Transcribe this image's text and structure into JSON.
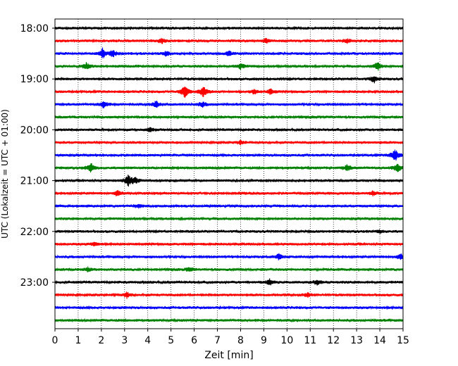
{
  "chart_data": {
    "type": "line",
    "title": "",
    "xlabel": "Zeit  [min]",
    "ylabel": "UTC (Lokalzeit = UTC + 01:00)",
    "xlim": [
      0,
      15
    ],
    "x_ticks": [
      "0",
      "1",
      "2",
      "3",
      "4",
      "5",
      "6",
      "7",
      "8",
      "9",
      "10",
      "11",
      "12",
      "13",
      "14",
      "15"
    ],
    "y_ticks": [
      "18:00",
      "19:00",
      "20:00",
      "21:00",
      "22:00",
      "23:00"
    ],
    "grid": "vertical-dotted",
    "trace_interval_minutes": 15,
    "start_time": "18:00",
    "end_time": "23:45",
    "color_cycle": [
      "#000000",
      "#ff0000",
      "#0000ff",
      "#008000"
    ],
    "traces": [
      {
        "time": "18:00",
        "events": []
      },
      {
        "time": "18:15",
        "events": [
          {
            "t": 4.6,
            "amp": 0.35
          },
          {
            "t": 9.1,
            "amp": 0.3
          },
          {
            "t": 12.6,
            "amp": 0.3
          }
        ]
      },
      {
        "time": "18:30",
        "events": [
          {
            "t": 2.05,
            "amp": 0.8
          },
          {
            "t": 2.5,
            "amp": 0.55
          },
          {
            "t": 4.8,
            "amp": 0.35
          },
          {
            "t": 7.5,
            "amp": 0.35
          }
        ]
      },
      {
        "time": "18:45",
        "events": [
          {
            "t": 1.35,
            "amp": 0.55
          },
          {
            "t": 8.0,
            "amp": 0.4
          },
          {
            "t": 13.9,
            "amp": 0.65
          }
        ]
      },
      {
        "time": "19:00",
        "events": [
          {
            "t": 13.75,
            "amp": 0.55
          }
        ]
      },
      {
        "time": "19:15",
        "events": [
          {
            "t": 5.6,
            "amp": 1.0
          },
          {
            "t": 6.4,
            "amp": 0.9
          },
          {
            "t": 8.6,
            "amp": 0.4
          },
          {
            "t": 9.3,
            "amp": 0.4
          }
        ]
      },
      {
        "time": "19:30",
        "events": [
          {
            "t": 2.1,
            "amp": 0.55
          },
          {
            "t": 4.35,
            "amp": 0.55
          },
          {
            "t": 6.35,
            "amp": 0.4
          }
        ]
      },
      {
        "time": "19:45",
        "events": []
      },
      {
        "time": "20:00",
        "events": [
          {
            "t": 4.1,
            "amp": 0.3
          }
        ]
      },
      {
        "time": "20:15",
        "events": [
          {
            "t": 8.0,
            "amp": 0.25
          }
        ]
      },
      {
        "time": "20:30",
        "events": [
          {
            "t": 14.65,
            "amp": 1.0
          }
        ]
      },
      {
        "time": "20:45",
        "events": [
          {
            "t": 1.55,
            "amp": 0.75
          },
          {
            "t": 12.6,
            "amp": 0.5
          },
          {
            "t": 14.75,
            "amp": 0.7
          }
        ]
      },
      {
        "time": "21:00",
        "events": [
          {
            "t": 3.15,
            "amp": 0.9
          },
          {
            "t": 3.45,
            "amp": 0.45
          }
        ]
      },
      {
        "time": "21:15",
        "events": [
          {
            "t": 2.7,
            "amp": 0.4
          },
          {
            "t": 13.7,
            "amp": 0.3
          }
        ]
      },
      {
        "time": "21:30",
        "events": [
          {
            "t": 3.6,
            "amp": 0.25
          }
        ]
      },
      {
        "time": "21:45",
        "events": []
      },
      {
        "time": "22:00",
        "events": [
          {
            "t": 14.0,
            "amp": 0.25
          }
        ]
      },
      {
        "time": "22:15",
        "events": [
          {
            "t": 1.7,
            "amp": 0.3
          }
        ]
      },
      {
        "time": "22:30",
        "events": [
          {
            "t": 9.65,
            "amp": 0.45
          },
          {
            "t": 14.9,
            "amp": 0.4
          }
        ]
      },
      {
        "time": "22:45",
        "events": [
          {
            "t": 1.4,
            "amp": 0.3
          },
          {
            "t": 5.8,
            "amp": 0.3
          }
        ]
      },
      {
        "time": "23:00",
        "events": [
          {
            "t": 9.25,
            "amp": 0.45
          },
          {
            "t": 11.3,
            "amp": 0.4
          }
        ]
      },
      {
        "time": "23:15",
        "events": [
          {
            "t": 3.1,
            "amp": 0.45
          },
          {
            "t": 10.9,
            "amp": 0.3
          }
        ]
      },
      {
        "time": "23:30",
        "events": []
      },
      {
        "time": "23:45",
        "events": []
      }
    ]
  }
}
